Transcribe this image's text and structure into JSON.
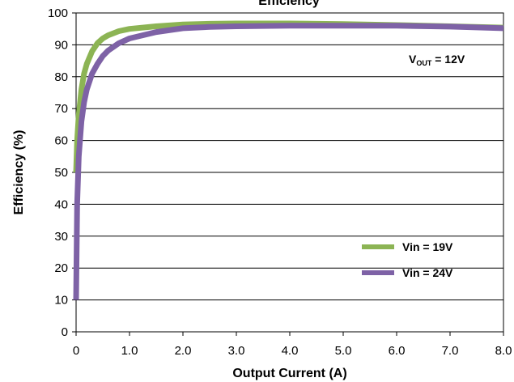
{
  "chart_data": {
    "type": "line",
    "title": "Efficiency",
    "xlabel": "Output Current (A)",
    "ylabel": "Efficiency (%)",
    "xlim": [
      0,
      8
    ],
    "ylim": [
      0,
      100
    ],
    "x_ticks": [
      "0",
      "1.0",
      "2.0",
      "3.0",
      "4.0",
      "5.0",
      "6.0",
      "7.0",
      "8.0"
    ],
    "y_ticks": [
      "0",
      "10",
      "20",
      "30",
      "40",
      "50",
      "60",
      "70",
      "80",
      "90",
      "100"
    ],
    "grid": true,
    "legend_position": "bottom-right",
    "annotation": {
      "prefix": "V",
      "subscript": "OUT",
      "suffix": " = 12V"
    },
    "series": [
      {
        "name": "Vin = 19V",
        "color": "#8CB454",
        "x": [
          0,
          0.02,
          0.05,
          0.1,
          0.15,
          0.2,
          0.3,
          0.4,
          0.5,
          0.6,
          0.8,
          1.0,
          1.5,
          2.0,
          2.5,
          3.0,
          4.0,
          5.0,
          6.0,
          7.0,
          8.0
        ],
        "y": [
          50,
          60,
          68,
          76,
          81,
          84,
          88,
          90.5,
          92,
          93,
          94.3,
          95,
          95.8,
          96.4,
          96.6,
          96.7,
          96.7,
          96.5,
          96.2,
          95.8,
          95.4
        ]
      },
      {
        "name": "Vin = 24V",
        "color": "#7E62A6",
        "x": [
          0,
          0.02,
          0.05,
          0.1,
          0.15,
          0.2,
          0.3,
          0.4,
          0.5,
          0.6,
          0.8,
          1.0,
          1.5,
          2.0,
          2.5,
          3.0,
          4.0,
          5.0,
          6.0,
          7.0,
          8.0
        ],
        "y": [
          10,
          40,
          55,
          66,
          72,
          76,
          81,
          84,
          86.5,
          88.2,
          90.5,
          92,
          94,
          95.2,
          95.6,
          95.8,
          96,
          96,
          96,
          95.7,
          95.2
        ]
      }
    ]
  }
}
